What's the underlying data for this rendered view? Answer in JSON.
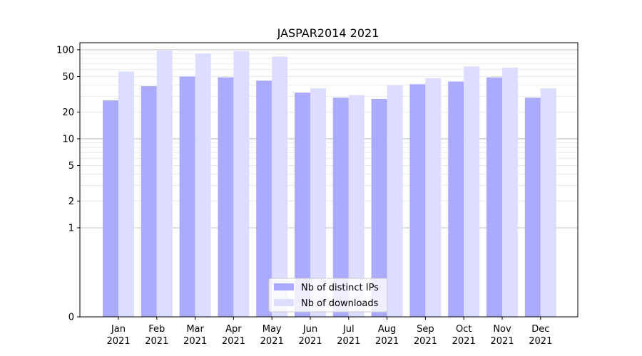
{
  "chart_data": {
    "type": "bar",
    "title": "JASPAR2014 2021",
    "xlabel": "",
    "ylabel": "",
    "yscale": "symlog",
    "ylim": [
      0,
      120
    ],
    "yticks": [
      0,
      1,
      2,
      5,
      10,
      20,
      50,
      100
    ],
    "ytick_labels": [
      "0",
      "1",
      "2",
      "5",
      "10",
      "20",
      "50",
      "100"
    ],
    "grid": true,
    "categories": [
      {
        "month": "Jan",
        "year": "2021"
      },
      {
        "month": "Feb",
        "year": "2021"
      },
      {
        "month": "Mar",
        "year": "2021"
      },
      {
        "month": "Apr",
        "year": "2021"
      },
      {
        "month": "May",
        "year": "2021"
      },
      {
        "month": "Jun",
        "year": "2021"
      },
      {
        "month": "Jul",
        "year": "2021"
      },
      {
        "month": "Aug",
        "year": "2021"
      },
      {
        "month": "Sep",
        "year": "2021"
      },
      {
        "month": "Oct",
        "year": "2021"
      },
      {
        "month": "Nov",
        "year": "2021"
      },
      {
        "month": "Dec",
        "year": "2021"
      }
    ],
    "series": [
      {
        "name": "Nb of distinct IPs",
        "color": "#aaaaff",
        "values": [
          27,
          39,
          50,
          49,
          45,
          33,
          29,
          28,
          41,
          44,
          49,
          29
        ]
      },
      {
        "name": "Nb of downloads",
        "color": "#ddddff",
        "values": [
          57,
          98,
          91,
          96,
          84,
          37,
          31,
          40,
          48,
          65,
          63,
          37
        ]
      }
    ],
    "legend": {
      "location": "lower-center"
    }
  }
}
